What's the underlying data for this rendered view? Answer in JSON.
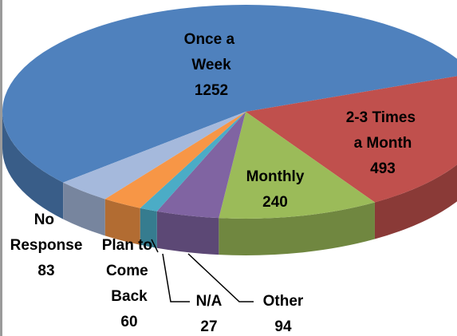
{
  "chart_data": {
    "type": "pie3d",
    "categories": [
      "Once a Week",
      "2-3 Times a Month",
      "Monthly",
      "Other",
      "N/A",
      "Plan to Come Back",
      "No Response"
    ],
    "values": [
      1252,
      493,
      240,
      94,
      27,
      60,
      83
    ],
    "colors": [
      "#4f81bd",
      "#c0504d",
      "#9bbb59",
      "#8064a2",
      "#4bacc6",
      "#f79646",
      "#a5b9dc"
    ]
  }
}
